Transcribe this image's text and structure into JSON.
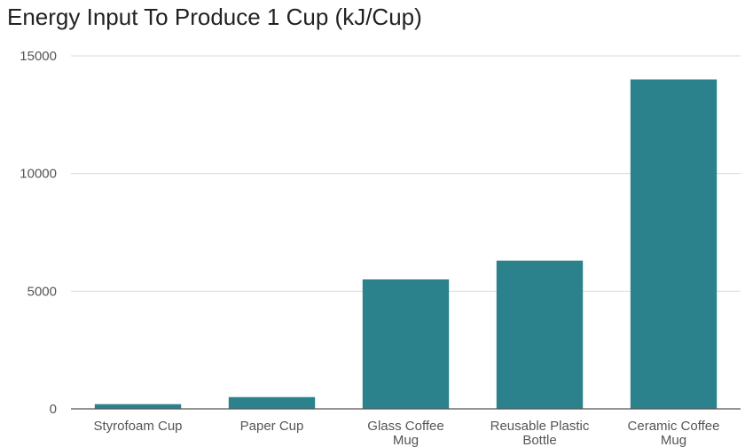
{
  "chart_data": {
    "type": "bar",
    "title": "Energy Input To Produce 1 Cup (kJ/Cup)",
    "xlabel": "",
    "ylabel": "",
    "categories": [
      [
        "Styrofoam Cup"
      ],
      [
        "Paper Cup"
      ],
      [
        "Glass Coffee",
        "Mug"
      ],
      [
        "Reusable Plastic",
        "Bottle"
      ],
      [
        "Ceramic Coffee",
        "Mug"
      ]
    ],
    "values": [
      200,
      500,
      5500,
      6300,
      14000
    ],
    "ylim": [
      0,
      15000
    ],
    "yticks": [
      0,
      5000,
      10000,
      15000
    ],
    "grid": true,
    "legend": "none",
    "colors": {
      "bar": "#2b818c",
      "grid": "#d9d9d9",
      "axis": "#555555"
    }
  }
}
